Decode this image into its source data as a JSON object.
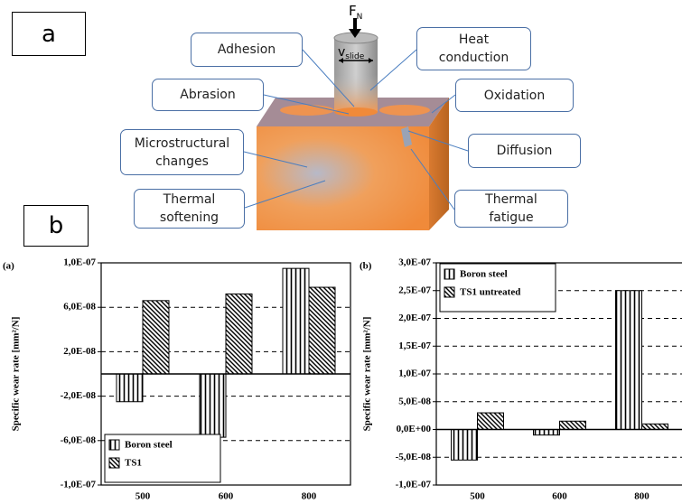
{
  "diagram": {
    "panel_labels": [
      "a",
      "b"
    ],
    "force": {
      "symbol": "F",
      "subscript": "N"
    },
    "velocity": {
      "symbol": "v",
      "subscript": "slide"
    },
    "mechanisms": [
      "Adhesion",
      "Heat conduction",
      "Abrasion",
      "Oxidation",
      "Microstructural changes",
      "Diffusion",
      "Thermal softening",
      "Thermal fatigue"
    ]
  },
  "chart_data": [
    {
      "type": "bar",
      "title": "(a)",
      "ylabel": "Specific wear rate [mm²/N]",
      "categories": [
        "500",
        "600",
        "800"
      ],
      "series": [
        {
          "name": "Boron steel",
          "color": "#000000",
          "pattern": "vertical",
          "values": [
            -2.5e-08,
            -5.7e-08,
            9.5e-08
          ]
        },
        {
          "name": "TS1",
          "color": "#000000",
          "pattern": "diagonal",
          "values": [
            6.6e-08,
            7.2e-08,
            7.8e-08
          ]
        }
      ],
      "ylim": [
        -1e-07,
        1e-07
      ],
      "yticks": [
        {
          "value": -1e-07,
          "label": "-1,0E-07"
        },
        {
          "value": -6e-08,
          "label": "-6,0E-08"
        },
        {
          "value": -2e-08,
          "label": "-2,0E-08"
        },
        {
          "value": 2e-08,
          "label": "2,0E-08"
        },
        {
          "value": 6e-08,
          "label": "6,0E-08"
        },
        {
          "value": 1e-07,
          "label": "1,0E-07"
        }
      ],
      "grid": true,
      "legend": "lower left"
    },
    {
      "type": "bar",
      "title": "(b)",
      "ylabel": "Specific wear rate [mm²/N]",
      "categories": [
        "500",
        "600",
        "800"
      ],
      "series": [
        {
          "name": "Boron steel",
          "color": "#000000",
          "pattern": "vertical",
          "values": [
            -5.5e-08,
            -1e-08,
            2.5e-07
          ]
        },
        {
          "name": "TS1 untreated",
          "color": "#000000",
          "pattern": "diagonal",
          "values": [
            3e-08,
            1.5e-08,
            1e-08
          ]
        }
      ],
      "ylim": [
        -1e-07,
        3e-07
      ],
      "yticks": [
        {
          "value": -1e-07,
          "label": "-1,0E-07"
        },
        {
          "value": -5e-08,
          "label": "-5,0E-08"
        },
        {
          "value": 0,
          "label": "0,0E+00"
        },
        {
          "value": 5e-08,
          "label": "5,0E-08"
        },
        {
          "value": 1e-07,
          "label": "1,0E-07"
        },
        {
          "value": 1.5e-07,
          "label": "1,5E-07"
        },
        {
          "value": 2e-07,
          "label": "2,0E-07"
        },
        {
          "value": 2.5e-07,
          "label": "2,5E-07"
        },
        {
          "value": 3e-07,
          "label": "3,0E-07"
        }
      ],
      "grid": true,
      "legend": "upper left"
    }
  ]
}
